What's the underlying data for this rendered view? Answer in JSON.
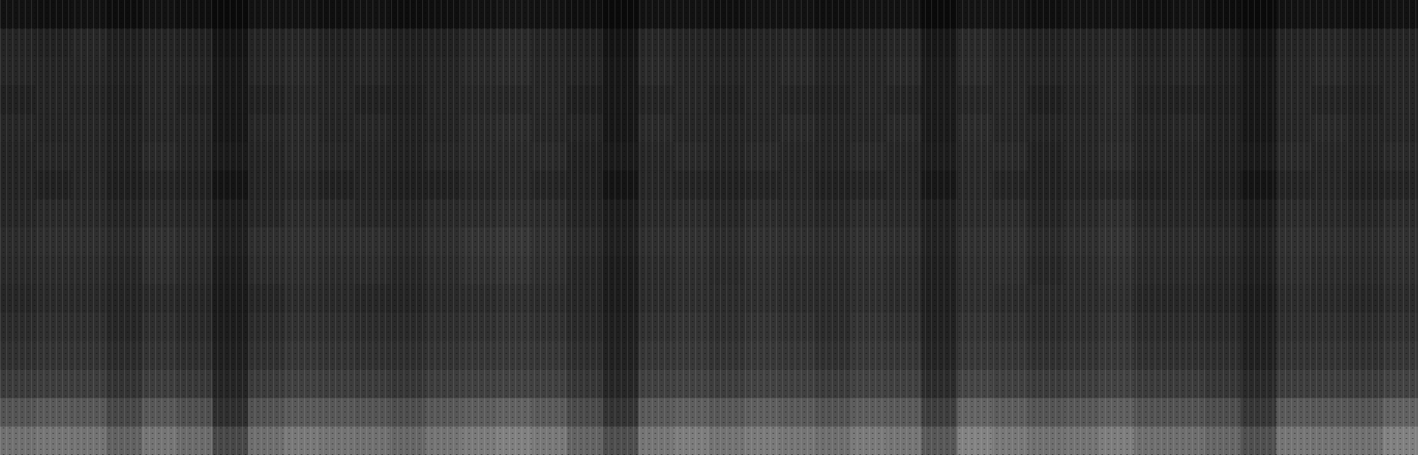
{
  "chart_data": {
    "type": "heatmap",
    "tick_labels": false,
    "zlim": [
      0,
      100
    ],
    "cells": [
      [
        7,
        6,
        7,
        5,
        7,
        6,
        4,
        7,
        7,
        6,
        7,
        5,
        6,
        7,
        8,
        7,
        6,
        4,
        7,
        7,
        6,
        7,
        7,
        6,
        7,
        7,
        4,
        8,
        7,
        6,
        7,
        7,
        6,
        7,
        5,
        4,
        7,
        7,
        6,
        7
      ],
      [
        14,
        13,
        15,
        12,
        14,
        13,
        8,
        14,
        15,
        13,
        14,
        12,
        13,
        15,
        16,
        14,
        13,
        8,
        15,
        14,
        13,
        14,
        15,
        13,
        14,
        15,
        9,
        16,
        14,
        13,
        14,
        15,
        13,
        14,
        12,
        8,
        14,
        15,
        13,
        14
      ],
      [
        15,
        14,
        15,
        13,
        15,
        14,
        9,
        15,
        16,
        14,
        15,
        13,
        14,
        16,
        17,
        15,
        14,
        9,
        16,
        15,
        14,
        15,
        16,
        14,
        15,
        16,
        10,
        17,
        15,
        14,
        15,
        16,
        14,
        15,
        13,
        9,
        15,
        16,
        14,
        15
      ],
      [
        13,
        14,
        14,
        12,
        15,
        13,
        9,
        13,
        15,
        14,
        13,
        12,
        14,
        15,
        15,
        15,
        12,
        9,
        14,
        15,
        13,
        15,
        14,
        13,
        15,
        14,
        10,
        15,
        15,
        12,
        14,
        16,
        13,
        13,
        12,
        9,
        15,
        14,
        13,
        15
      ],
      [
        15,
        14,
        15,
        13,
        15,
        14,
        9,
        15,
        16,
        14,
        15,
        13,
        14,
        16,
        17,
        15,
        14,
        9,
        16,
        15,
        14,
        15,
        16,
        14,
        15,
        16,
        10,
        17,
        15,
        14,
        15,
        16,
        14,
        15,
        13,
        9,
        15,
        16,
        14,
        15
      ],
      [
        14,
        15,
        15,
        13,
        16,
        14,
        10,
        14,
        16,
        15,
        14,
        13,
        15,
        16,
        16,
        16,
        13,
        10,
        15,
        16,
        14,
        16,
        15,
        14,
        16,
        15,
        11,
        16,
        16,
        13,
        15,
        17,
        14,
        14,
        13,
        10,
        16,
        15,
        14,
        16
      ],
      [
        14,
        13,
        15,
        12,
        14,
        13,
        8,
        14,
        15,
        13,
        14,
        12,
        13,
        15,
        16,
        14,
        13,
        8,
        15,
        14,
        13,
        14,
        15,
        13,
        14,
        15,
        9,
        16,
        14,
        13,
        14,
        15,
        13,
        14,
        12,
        8,
        14,
        15,
        13,
        14
      ],
      [
        15,
        16,
        16,
        14,
        16,
        15,
        11,
        15,
        17,
        16,
        15,
        14,
        16,
        17,
        18,
        17,
        14,
        11,
        16,
        17,
        15,
        17,
        16,
        15,
        17,
        16,
        12,
        17,
        17,
        14,
        16,
        18,
        15,
        15,
        14,
        11,
        17,
        16,
        15,
        17
      ],
      [
        17,
        18,
        18,
        16,
        19,
        17,
        12,
        18,
        19,
        18,
        18,
        16,
        18,
        20,
        21,
        19,
        16,
        12,
        18,
        19,
        17,
        19,
        18,
        17,
        19,
        18,
        13,
        19,
        19,
        16,
        18,
        20,
        17,
        17,
        16,
        13,
        19,
        18,
        17,
        19
      ],
      [
        16,
        17,
        17,
        15,
        18,
        16,
        11,
        17,
        18,
        17,
        17,
        15,
        17,
        19,
        20,
        18,
        15,
        11,
        17,
        18,
        16,
        18,
        17,
        16,
        18,
        17,
        12,
        18,
        18,
        15,
        17,
        19,
        16,
        16,
        15,
        12,
        18,
        17,
        16,
        18
      ],
      [
        15,
        16,
        16,
        14,
        16,
        15,
        10,
        15,
        17,
        16,
        15,
        14,
        16,
        17,
        18,
        17,
        15,
        11,
        17,
        18,
        17,
        18,
        17,
        16,
        18,
        17,
        12,
        18,
        17,
        16,
        17,
        18,
        15,
        15,
        14,
        11,
        17,
        16,
        15,
        17
      ],
      [
        17,
        18,
        18,
        15,
        18,
        16,
        11,
        17,
        19,
        18,
        17,
        16,
        18,
        19,
        20,
        19,
        16,
        12,
        19,
        20,
        18,
        20,
        19,
        17,
        20,
        19,
        13,
        20,
        19,
        17,
        18,
        20,
        17,
        17,
        16,
        12,
        18,
        18,
        17,
        19
      ],
      [
        19,
        20,
        20,
        17,
        20,
        18,
        12,
        19,
        21,
        20,
        19,
        18,
        20,
        21,
        22,
        21,
        18,
        13,
        21,
        22,
        20,
        22,
        21,
        19,
        22,
        21,
        14,
        22,
        21,
        19,
        20,
        22,
        19,
        19,
        18,
        13,
        20,
        20,
        19,
        21
      ],
      [
        23,
        24,
        24,
        20,
        24,
        22,
        14,
        23,
        25,
        24,
        23,
        21,
        24,
        25,
        26,
        25,
        21,
        15,
        25,
        26,
        24,
        26,
        25,
        23,
        26,
        25,
        17,
        27,
        25,
        23,
        24,
        26,
        23,
        23,
        21,
        16,
        24,
        24,
        23,
        26
      ],
      [
        33,
        35,
        34,
        28,
        34,
        31,
        18,
        32,
        35,
        34,
        33,
        30,
        34,
        36,
        38,
        35,
        29,
        20,
        35,
        37,
        34,
        37,
        35,
        32,
        36,
        35,
        24,
        39,
        36,
        33,
        34,
        37,
        32,
        32,
        30,
        21,
        35,
        34,
        33,
        38
      ],
      [
        44,
        46,
        45,
        38,
        46,
        42,
        28,
        43,
        47,
        45,
        44,
        40,
        45,
        48,
        50,
        47,
        39,
        30,
        46,
        49,
        45,
        48,
        46,
        43,
        48,
        46,
        34,
        51,
        47,
        44,
        45,
        49,
        43,
        43,
        40,
        31,
        46,
        45,
        44,
        50
      ]
    ]
  }
}
